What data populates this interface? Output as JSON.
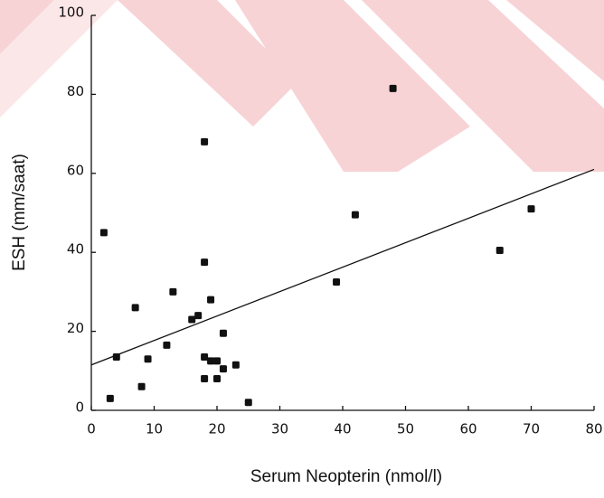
{
  "chart_data": {
    "type": "scatter",
    "x_label": "Serum Neopterin (nmol/l)",
    "y_label": "ESH (mm/saat)",
    "x": [
      2,
      3,
      4,
      7,
      8,
      9,
      12,
      13,
      16,
      17,
      18,
      18,
      18,
      18,
      19,
      19,
      20,
      20,
      21,
      21,
      23,
      25,
      39,
      42,
      48,
      65,
      70
    ],
    "values": [
      45,
      3,
      13.5,
      26,
      6,
      13,
      16.5,
      30,
      23,
      24,
      37.5,
      68,
      13.5,
      8,
      28,
      12.5,
      12.5,
      8,
      19.5,
      10.5,
      11.5,
      2,
      32.5,
      49.5,
      81.5,
      40.5,
      51
    ],
    "color": "#111111",
    "trendline": {
      "x": [
        0,
        80
      ],
      "y": [
        11.5,
        61
      ]
    },
    "xlim": [
      0,
      80
    ],
    "ylim": [
      0,
      100
    ],
    "xticks": [
      0,
      10,
      20,
      30,
      40,
      50,
      60,
      70,
      80
    ],
    "yticks": [
      0,
      20,
      40,
      60,
      80,
      100
    ]
  }
}
